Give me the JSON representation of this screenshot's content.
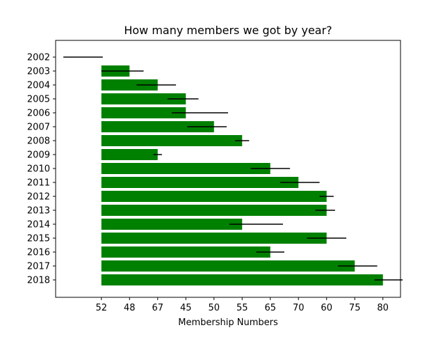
{
  "chart_data": {
    "type": "bar",
    "orientation": "horizontal",
    "title": "How many members we got by year?",
    "xlabel": "Membership Numbers",
    "ylabel": "",
    "categories": [
      "2002",
      "2003",
      "2004",
      "2005",
      "2006",
      "2007",
      "2008",
      "2009",
      "2010",
      "2011",
      "2012",
      "2013",
      "2014",
      "2015",
      "2016",
      "2017",
      "2018"
    ],
    "x_tick_labels": [
      "52",
      "48",
      "67",
      "45",
      "50",
      "55",
      "65",
      "70",
      "60",
      "75",
      "80"
    ],
    "values": [
      0,
      48,
      67,
      45,
      45,
      50,
      55,
      67,
      65,
      70,
      60,
      60,
      55,
      60,
      65,
      75,
      80
    ],
    "xlim": [
      -0.625,
      11.625
    ],
    "x_tick_positions": [
      1,
      2,
      3,
      4,
      5,
      6,
      7,
      8,
      9,
      10,
      11
    ],
    "bar_starts": [
      1,
      1,
      1,
      1,
      1,
      1,
      1,
      1,
      1,
      1,
      1,
      1,
      1,
      1,
      1,
      1,
      1
    ],
    "bar_ends": [
      1,
      2,
      3,
      4,
      4,
      5,
      6,
      3,
      7,
      8,
      9,
      9,
      6,
      9,
      7,
      10,
      11
    ],
    "error_centers": [
      0.35,
      1.75,
      2.95,
      3.9,
      4.5,
      4.75,
      6.0,
      3.0,
      7.0,
      8.05,
      9.0,
      8.95,
      6.5,
      9.0,
      7.0,
      10.1,
      11.2
    ],
    "error_half_widths": [
      0.7,
      0.75,
      0.7,
      0.55,
      1.0,
      0.7,
      0.25,
      0.15,
      0.7,
      0.7,
      0.25,
      0.35,
      0.95,
      0.7,
      0.5,
      0.7,
      0.5
    ],
    "bar_color": "#008000",
    "grid": false,
    "legend": "none"
  }
}
